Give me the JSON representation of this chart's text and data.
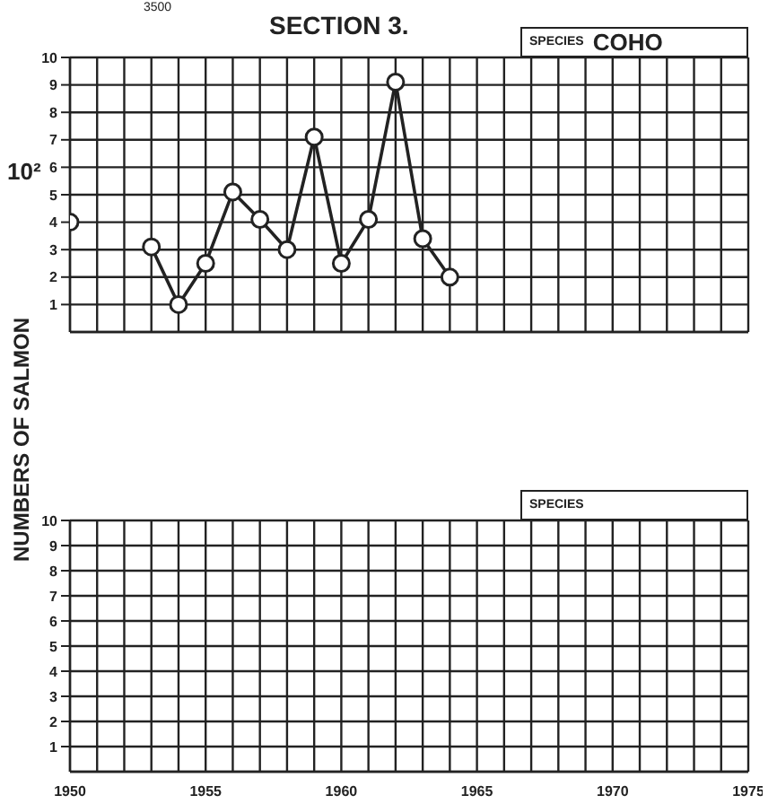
{
  "chart_data": [
    {
      "type": "line",
      "title": "SECTION 3.",
      "ylabel": "NUMBERS OF SALMON",
      "x": [
        1950,
        1951,
        1952,
        1953,
        1954,
        1955,
        1956,
        1957,
        1958,
        1959,
        1960,
        1961,
        1962,
        1963,
        1964
      ],
      "series": [
        {
          "color": "#222222",
          "values": [
            4,
            null,
            null,
            3.1,
            1,
            2.5,
            5.1,
            4.1,
            3,
            7.1,
            2.5,
            4.1,
            9.1,
            3.4,
            2
          ]
        }
      ],
      "annotations": [
        "3500",
        "10²",
        "SPECIES",
        "COHO"
      ],
      "xlim": [
        1950,
        1975
      ],
      "xticks": [
        {
          "value": 1950,
          "label": null
        },
        {
          "value": 1951,
          "label": null
        },
        {
          "value": 1952,
          "label": null
        },
        {
          "value": 1953,
          "label": null
        },
        {
          "value": 1954,
          "label": null
        },
        {
          "value": 1955,
          "label": null
        },
        {
          "value": 1956,
          "label": null
        },
        {
          "value": 1957,
          "label": null
        },
        {
          "value": 1958,
          "label": null
        },
        {
          "value": 1959,
          "label": null
        },
        {
          "value": 1960,
          "label": null
        },
        {
          "value": 1961,
          "label": null
        },
        {
          "value": 1962,
          "label": null
        },
        {
          "value": 1963,
          "label": null
        },
        {
          "value": 1964,
          "label": null
        },
        {
          "value": 1965,
          "label": null
        },
        {
          "value": 1966,
          "label": null
        },
        {
          "value": 1967,
          "label": null
        },
        {
          "value": 1968,
          "label": null
        },
        {
          "value": 1969,
          "label": null
        },
        {
          "value": 1970,
          "label": null
        },
        {
          "value": 1971,
          "label": null
        },
        {
          "value": 1972,
          "label": null
        },
        {
          "value": 1973,
          "label": null
        },
        {
          "value": 1974,
          "label": null
        },
        {
          "value": 1975,
          "label": null
        }
      ],
      "ylim": [
        0,
        10
      ],
      "yticks": [
        1,
        2,
        3,
        4,
        5,
        6,
        7,
        8,
        9,
        10
      ],
      "grid": true,
      "marker": "circle",
      "tick_labels": "y"
    },
    {
      "type": "line",
      "annotations": [
        "SPECIES"
      ],
      "xlim": [
        1950,
        1975
      ],
      "xticks": [
        {
          "value": 1950,
          "label": "1950"
        },
        {
          "value": 1951,
          "label": null
        },
        {
          "value": 1952,
          "label": null
        },
        {
          "value": 1953,
          "label": null
        },
        {
          "value": 1954,
          "label": null
        },
        {
          "value": 1955,
          "label": "1955"
        },
        {
          "value": 1956,
          "label": null
        },
        {
          "value": 1957,
          "label": null
        },
        {
          "value": 1958,
          "label": null
        },
        {
          "value": 1959,
          "label": null
        },
        {
          "value": 1960,
          "label": "1960"
        },
        {
          "value": 1961,
          "label": null
        },
        {
          "value": 1962,
          "label": null
        },
        {
          "value": 1963,
          "label": null
        },
        {
          "value": 1964,
          "label": null
        },
        {
          "value": 1965,
          "label": "1965"
        },
        {
          "value": 1966,
          "label": null
        },
        {
          "value": 1967,
          "label": null
        },
        {
          "value": 1968,
          "label": null
        },
        {
          "value": 1969,
          "label": null
        },
        {
          "value": 1970,
          "label": "1970"
        },
        {
          "value": 1971,
          "label": null
        },
        {
          "value": 1972,
          "label": null
        },
        {
          "value": 1973,
          "label": null
        },
        {
          "value": 1974,
          "label": null
        },
        {
          "value": 1975,
          "label": "1975"
        }
      ],
      "ylim": [
        0,
        10
      ],
      "yticks": [
        1,
        2,
        3,
        4,
        5,
        6,
        7,
        8,
        9,
        10
      ],
      "grid": true
    }
  ]
}
